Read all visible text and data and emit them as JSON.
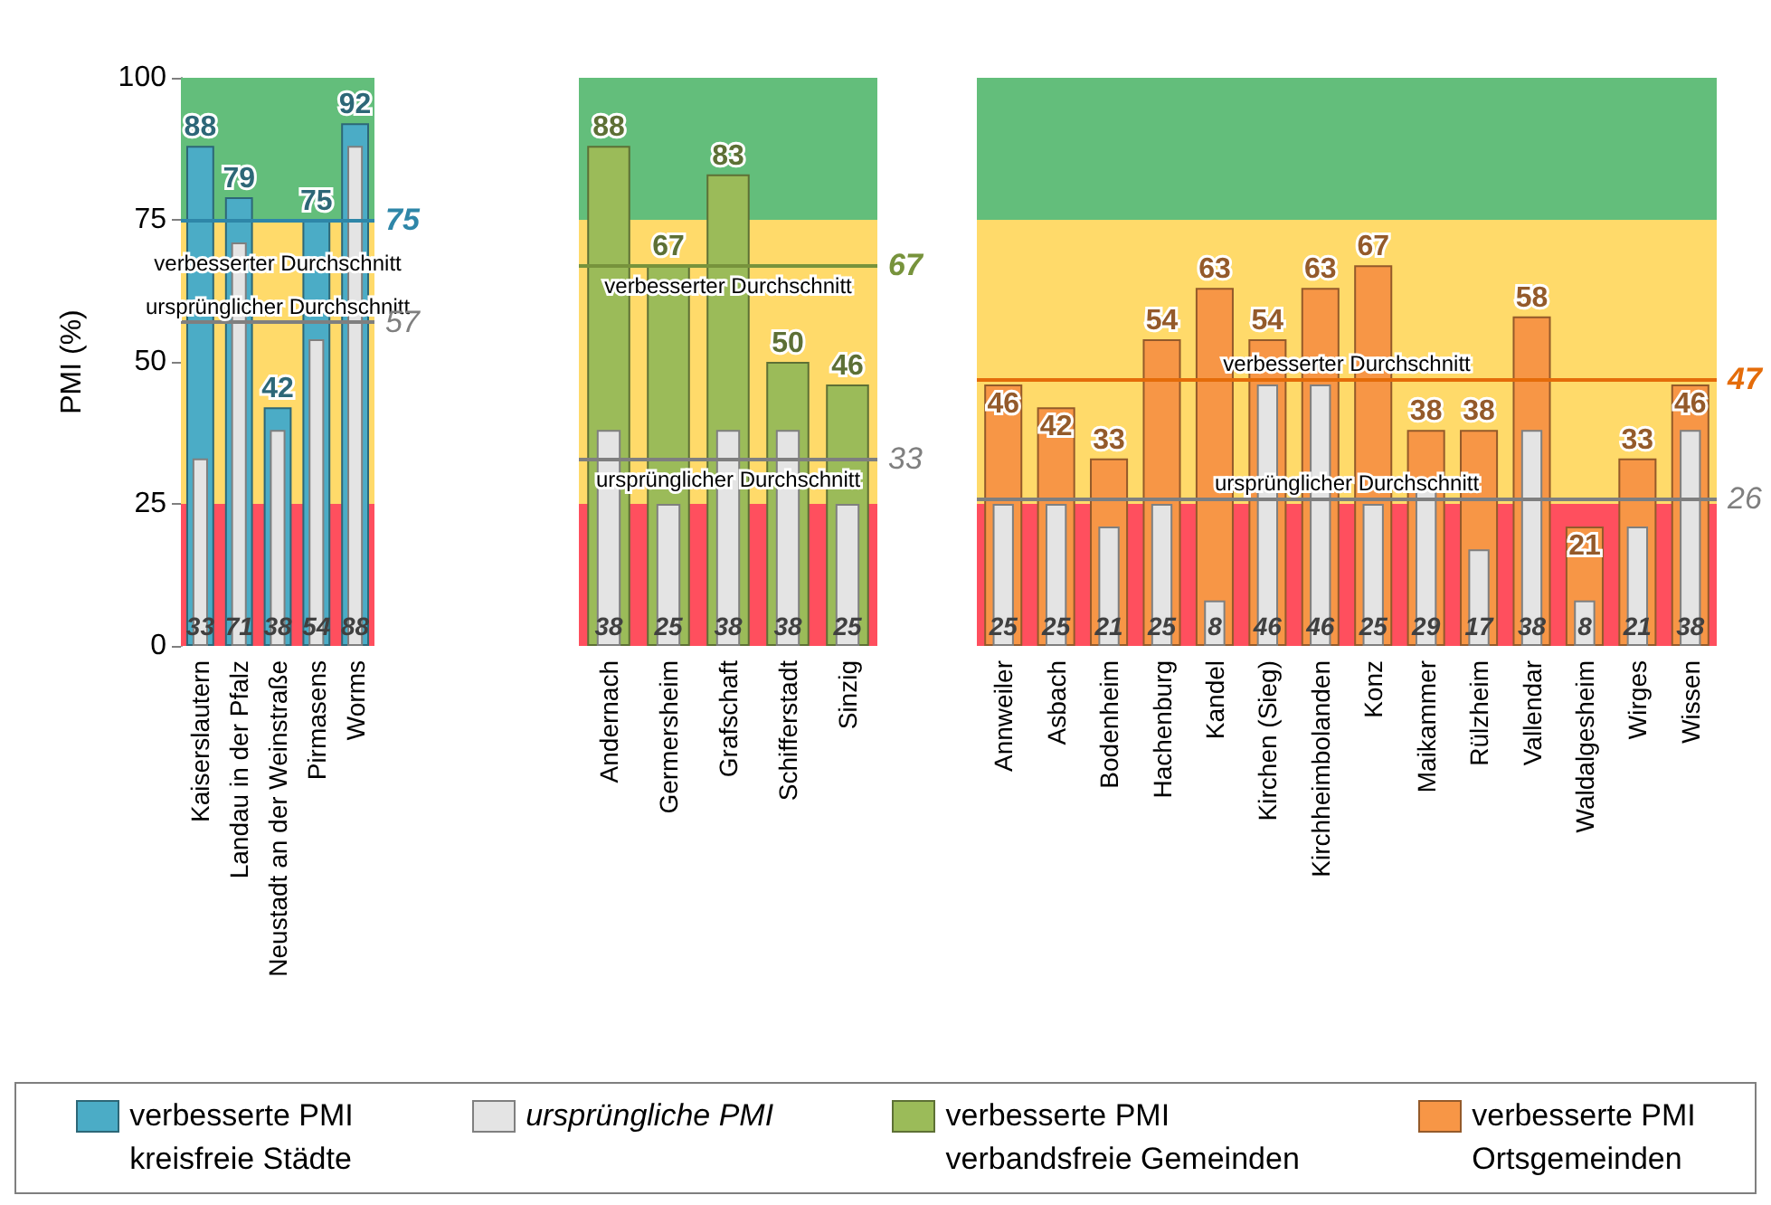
{
  "chart_data": [
    {
      "type": "bar",
      "ylabel": "PMI (%)",
      "categories": [
        "Kaiserslautern",
        "Landau in der Pfalz",
        "Neustadt an der Weinstraße",
        "Pirmasens",
        "Worms"
      ],
      "series": [
        {
          "name": "verbesserte PMI\nkreisfreie Städte",
          "color": "#4bacc6",
          "values": [
            88,
            79,
            42,
            75,
            92
          ]
        },
        {
          "name": "ursprüngliche PMI",
          "color": "#e4e4e4",
          "values": [
            33,
            71,
            38,
            54,
            88
          ]
        }
      ],
      "ylim": [
        0,
        100
      ],
      "yticks": [
        0,
        25,
        50,
        75,
        100
      ],
      "data_labels": true,
      "legend": "bottom",
      "bands": [
        {
          "axis": "y",
          "from": 0,
          "to": 25,
          "color": "#ff4f5e"
        },
        {
          "axis": "y",
          "from": 25,
          "to": 75,
          "color": "#ffda6a"
        },
        {
          "axis": "y",
          "from": 75,
          "to": 100,
          "color": "#63be7b"
        }
      ],
      "ref_lines": [
        {
          "axis": "y",
          "value": 75,
          "label": "verbesserter Durchschnitt",
          "color": "#2e86a8"
        },
        {
          "axis": "y",
          "value": 57,
          "label": "ursprünglicher Durchschnitt",
          "color": "#7f7f7f"
        }
      ],
      "annotations": [
        "75",
        "57"
      ]
    },
    {
      "type": "bar",
      "categories": [
        "Andernach",
        "Germersheim",
        "Grafschaft",
        "Schifferstadt",
        "Sinzig"
      ],
      "series": [
        {
          "name": "verbesserte PMI\nverbandsfreie Gemeinden",
          "color": "#9bbb59",
          "values": [
            88,
            67,
            83,
            50,
            46
          ]
        },
        {
          "color": "#e4e4e4",
          "values": [
            38,
            25,
            38,
            38,
            25
          ]
        }
      ],
      "ylim": [
        0,
        100
      ],
      "yticks": [
        0,
        25,
        50,
        75,
        100
      ],
      "tick_labels": "x",
      "data_labels": true,
      "legend": "bottom",
      "bands": [
        {
          "axis": "y",
          "from": 0,
          "to": 25,
          "color": "#ff4f5e"
        },
        {
          "axis": "y",
          "from": 25,
          "to": 75,
          "color": "#ffda6a"
        },
        {
          "axis": "y",
          "from": 75,
          "to": 100,
          "color": "#63be7b"
        }
      ],
      "ref_lines": [
        {
          "axis": "y",
          "value": 67,
          "label": "verbesserter Durchschnitt",
          "color": "#77933c"
        },
        {
          "axis": "y",
          "value": 33,
          "label": "ursprünglicher Durchschnitt",
          "color": "#7f7f7f"
        }
      ],
      "annotations": [
        "67",
        "33"
      ]
    },
    {
      "type": "bar",
      "categories": [
        "Annweiler",
        "Asbach",
        "Bodenheim",
        "Hachenburg",
        "Kandel",
        "Kirchen (Sieg)",
        "Kirchheimbolanden",
        "Konz",
        "Maikammer",
        "Rülzheim",
        "Vallendar",
        "Waldalgesheim",
        "Wirges",
        "Wissen"
      ],
      "series": [
        {
          "name": "verbesserte PMI\nOrtsgemeinden",
          "color": "#f79646",
          "values": [
            46,
            42,
            33,
            54,
            63,
            54,
            63,
            67,
            38,
            38,
            58,
            21,
            33,
            46
          ]
        },
        {
          "color": "#e4e4e4",
          "values": [
            25,
            25,
            21,
            25,
            8,
            46,
            46,
            25,
            29,
            17,
            38,
            8,
            21,
            38
          ]
        }
      ],
      "ylim": [
        0,
        100
      ],
      "yticks": [
        0,
        25,
        50,
        75,
        100
      ],
      "tick_labels": "x",
      "data_labels": true,
      "legend": "bottom",
      "bands": [
        {
          "axis": "y",
          "from": 0,
          "to": 25,
          "color": "#ff4f5e"
        },
        {
          "axis": "y",
          "from": 25,
          "to": 75,
          "color": "#ffda6a"
        },
        {
          "axis": "y",
          "from": 75,
          "to": 100,
          "color": "#63be7b"
        }
      ],
      "ref_lines": [
        {
          "axis": "y",
          "value": 47,
          "label": "verbesserter Durchschnitt",
          "color": "#e46c0a"
        },
        {
          "axis": "y",
          "value": 26,
          "label": "ursprünglicher Durchschnitt",
          "color": "#7f7f7f"
        }
      ],
      "annotations": [
        "47",
        "26"
      ]
    }
  ]
}
